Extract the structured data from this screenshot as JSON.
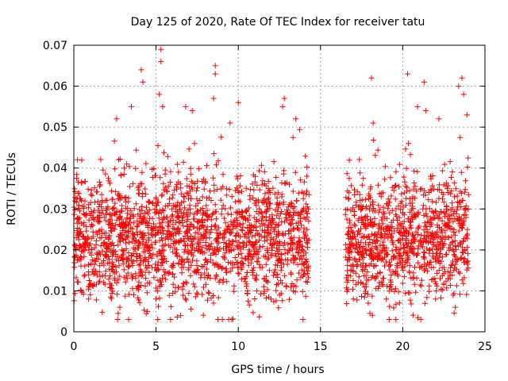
{
  "chart_data": {
    "type": "scatter",
    "title": "Day 125 of 2020, Rate Of TEC Index for receiver tatu",
    "xlabel": "GPS time / hours",
    "ylabel": "ROTI / TECUs",
    "xlim": [
      0,
      25
    ],
    "ylim": [
      0,
      0.07
    ],
    "xticks": [
      0,
      5,
      10,
      15,
      20,
      25
    ],
    "xtick_labels": [
      "0",
      "5",
      "10",
      "15",
      "20",
      "25"
    ],
    "yticks": [
      0,
      0.01,
      0.02,
      0.03,
      0.04,
      0.05,
      0.06,
      0.07
    ],
    "ytick_labels": [
      "0",
      "0.01",
      "0.02",
      "0.03",
      "0.04",
      "0.05",
      "0.06",
      "0.07"
    ],
    "grid": true,
    "marker": "+",
    "series_color": "#ff0000",
    "data_segments": [
      {
        "x_start": 0.0,
        "x_end": 14.3,
        "typical_range": [
          0.01,
          0.04
        ]
      },
      {
        "x_start": 16.5,
        "x_end": 24.0,
        "typical_range": [
          0.01,
          0.04
        ]
      }
    ],
    "outliers": [
      {
        "x": 5.3,
        "y": 0.069
      },
      {
        "x": 5.3,
        "y": 0.066
      },
      {
        "x": 4.1,
        "y": 0.064
      },
      {
        "x": 4.2,
        "y": 0.061
      },
      {
        "x": 8.6,
        "y": 0.065
      },
      {
        "x": 8.6,
        "y": 0.063
      },
      {
        "x": 5.2,
        "y": 0.058
      },
      {
        "x": 5.4,
        "y": 0.055
      },
      {
        "x": 8.5,
        "y": 0.057
      },
      {
        "x": 10.0,
        "y": 0.056
      },
      {
        "x": 12.8,
        "y": 0.057
      },
      {
        "x": 12.7,
        "y": 0.055
      },
      {
        "x": 3.5,
        "y": 0.055
      },
      {
        "x": 6.8,
        "y": 0.055
      },
      {
        "x": 7.2,
        "y": 0.054
      },
      {
        "x": 18.1,
        "y": 0.062
      },
      {
        "x": 20.3,
        "y": 0.063
      },
      {
        "x": 21.3,
        "y": 0.061
      },
      {
        "x": 23.6,
        "y": 0.062
      },
      {
        "x": 23.7,
        "y": 0.058
      },
      {
        "x": 23.4,
        "y": 0.06
      },
      {
        "x": 20.9,
        "y": 0.055
      },
      {
        "x": 22.2,
        "y": 0.052
      },
      {
        "x": 18.2,
        "y": 0.051
      },
      {
        "x": 21.4,
        "y": 0.054
      },
      {
        "x": 23.9,
        "y": 0.053
      },
      {
        "x": 13.5,
        "y": 0.052
      },
      {
        "x": 2.6,
        "y": 0.052
      },
      {
        "x": 9.5,
        "y": 0.051
      },
      {
        "x": 2.8,
        "y": 0.006
      },
      {
        "x": 2.7,
        "y": 0.0045
      },
      {
        "x": 18.0,
        "y": 0.0045
      },
      {
        "x": 17.9,
        "y": 0.007
      },
      {
        "x": 22.0,
        "y": 0.008
      },
      {
        "x": 23.2,
        "y": 0.006
      },
      {
        "x": 8.5,
        "y": 0.007
      },
      {
        "x": 12.0,
        "y": 0.008
      },
      {
        "x": 5.0,
        "y": 0.008
      },
      {
        "x": 19.0,
        "y": 0.008
      },
      {
        "x": 0.9,
        "y": 0.008
      },
      {
        "x": 10.6,
        "y": 0.0075
      }
    ]
  }
}
